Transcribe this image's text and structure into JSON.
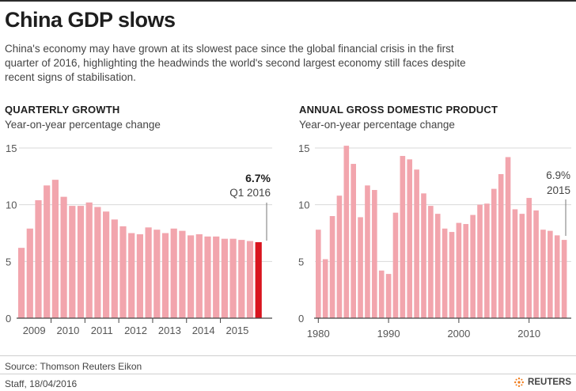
{
  "header": {
    "title": "China GDP slows",
    "subtitle": "China's economy may have grown at its slowest pace since the global financial crisis in the first quarter of 2016, highlighting the headwinds the world's second largest economy still faces despite recent signs of stabilisation."
  },
  "colors": {
    "bar": "#f2a5ad",
    "highlight": "#d9141e",
    "axis": "#555555",
    "text": "#2b2b2b"
  },
  "chart_data": [
    {
      "type": "bar",
      "title": "QUARTERLY GROWTH",
      "subtitle": "Year-on-year percentage change",
      "ylim": [
        0,
        15
      ],
      "yticks": [
        "0",
        "5",
        "10",
        "15"
      ],
      "xticklabels": [
        "2009",
        "2010",
        "2011",
        "2012",
        "2013",
        "2014",
        "2015"
      ],
      "values": [
        6.2,
        7.9,
        10.4,
        11.7,
        12.2,
        10.7,
        9.9,
        9.9,
        10.2,
        9.8,
        9.4,
        8.7,
        8.1,
        7.5,
        7.4,
        8.0,
        7.8,
        7.5,
        7.9,
        7.7,
        7.3,
        7.4,
        7.2,
        7.2,
        7.0,
        7.0,
        6.9,
        6.8,
        6.7
      ],
      "annotation": {
        "value": "6.7%",
        "label": "Q1 2016"
      }
    },
    {
      "type": "bar",
      "title": "ANNUAL GROSS DOMESTIC PRODUCT",
      "subtitle": "Year-on-year percentage change",
      "ylim": [
        0,
        15
      ],
      "yticks": [
        "0",
        "5",
        "10",
        "15"
      ],
      "xticklabels": [
        "1980",
        "1990",
        "2000",
        "2010"
      ],
      "x": [
        1980,
        1981,
        1982,
        1983,
        1984,
        1985,
        1986,
        1987,
        1988,
        1989,
        1990,
        1991,
        1992,
        1993,
        1994,
        1995,
        1996,
        1997,
        1998,
        1999,
        2000,
        2001,
        2002,
        2003,
        2004,
        2005,
        2006,
        2007,
        2008,
        2009,
        2010,
        2011,
        2012,
        2013,
        2014,
        2015
      ],
      "values": [
        7.8,
        5.2,
        9.0,
        10.8,
        15.2,
        13.6,
        8.9,
        11.7,
        11.3,
        4.2,
        3.9,
        9.3,
        14.3,
        14.0,
        13.1,
        11.0,
        9.9,
        9.2,
        7.9,
        7.6,
        8.4,
        8.3,
        9.1,
        10.0,
        10.1,
        11.4,
        12.7,
        14.2,
        9.6,
        9.2,
        10.6,
        9.5,
        7.8,
        7.7,
        7.3,
        6.9
      ],
      "annotation": {
        "value": "6.9%",
        "label": "2015"
      }
    }
  ],
  "footer": {
    "source": "Source: Thomson Reuters Eikon",
    "credit": "Staff, 18/04/2016",
    "logo": "REUTERS"
  }
}
